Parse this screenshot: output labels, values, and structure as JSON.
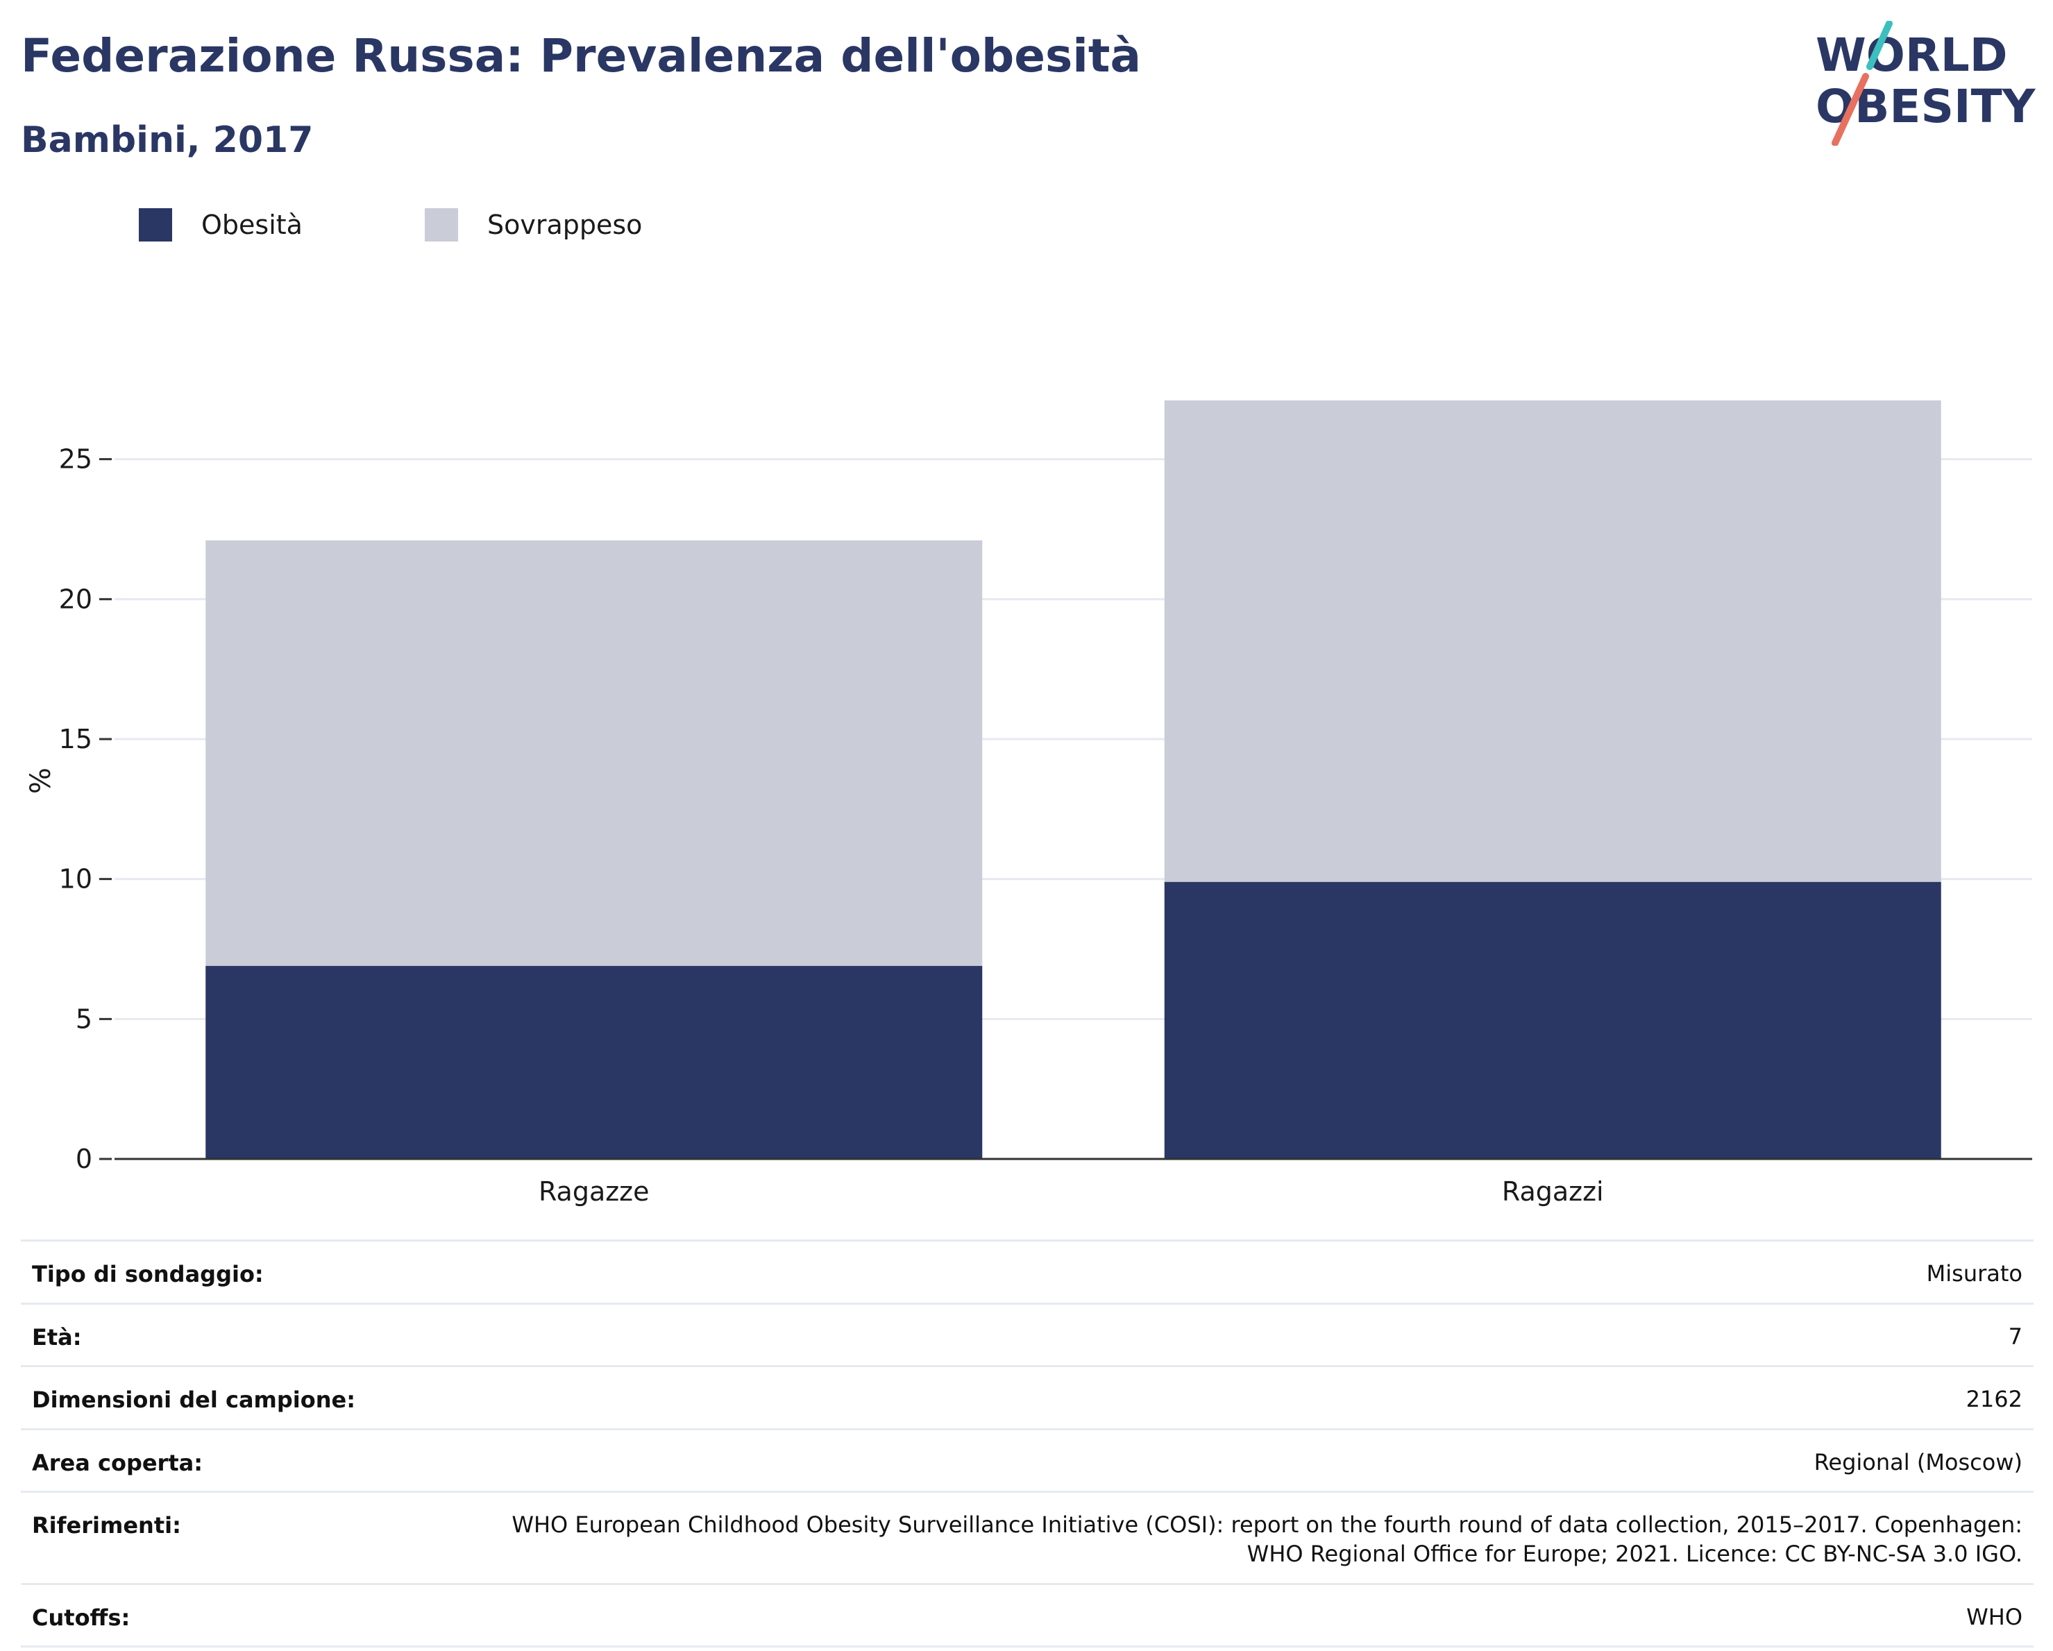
{
  "header": {
    "title": "Federazione Russa: Prevalenza dell'obesità",
    "subtitle": "Bambini, 2017"
  },
  "logo": {
    "line1": "WORLD",
    "line2": "OBESITY",
    "accent_colors": [
      "#3bbfbf",
      "#e8705f"
    ]
  },
  "colors": {
    "obesity": "#2a3764",
    "overweight": "#cacdd8",
    "grid": "#e6eaf0",
    "axis": "#333333"
  },
  "chart_data": {
    "type": "bar",
    "stacked": true,
    "categories": [
      "Ragazze",
      "Ragazzi"
    ],
    "series": [
      {
        "name": "Obesità",
        "values": [
          6.9,
          9.9
        ]
      },
      {
        "name": "Sovrappeso",
        "values": [
          15.2,
          17.2
        ]
      }
    ],
    "totals": [
      22.1,
      27.1
    ],
    "ylabel": "%",
    "xlabel": "",
    "ylim": [
      0,
      30
    ],
    "yticks": [
      0,
      5,
      10,
      15,
      20,
      25
    ],
    "grid": true,
    "legend_position": "top-left"
  },
  "info": [
    {
      "label": "Tipo di sondaggio:",
      "value": "Misurato"
    },
    {
      "label": "Età:",
      "value": "7"
    },
    {
      "label": "Dimensioni del campione:",
      "value": "2162"
    },
    {
      "label": "Area coperta:",
      "value": "Regional (Moscow)"
    },
    {
      "label": "Riferimenti:",
      "value": "WHO European Childhood Obesity Surveillance Initiative (COSI): report on the fourth round of data collection, 2015–2017. Copenhagen: WHO Regional Office for Europe; 2021. Licence: CC BY-NC-SA 3.0 IGO."
    },
    {
      "label": "Cutoffs:",
      "value": "WHO"
    }
  ]
}
